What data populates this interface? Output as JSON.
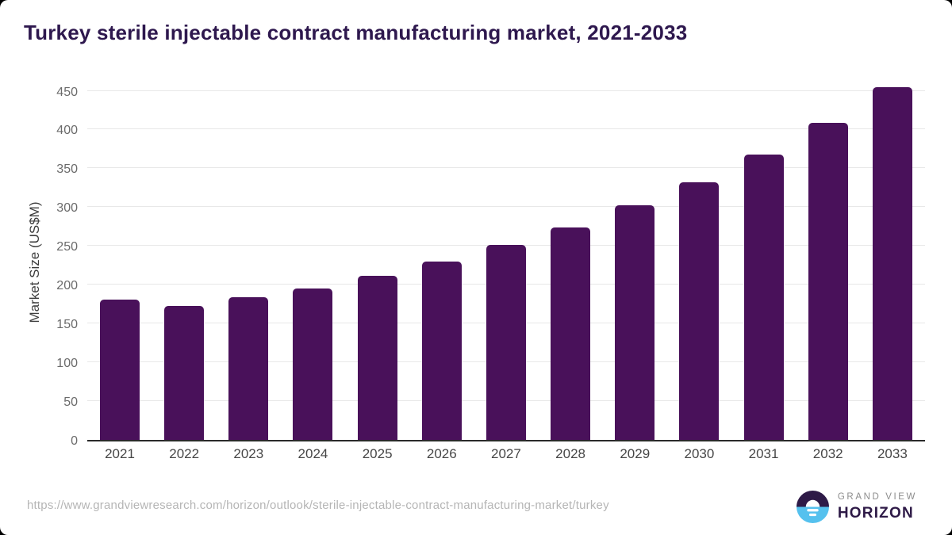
{
  "title": "Turkey sterile injectable contract manufacturing market, 2021-2033",
  "chart_data": {
    "type": "bar",
    "categories": [
      "2021",
      "2022",
      "2023",
      "2024",
      "2025",
      "2026",
      "2027",
      "2028",
      "2029",
      "2030",
      "2031",
      "2032",
      "2033"
    ],
    "values": [
      181,
      173,
      184,
      195,
      211,
      230,
      251,
      274,
      302,
      332,
      368,
      409,
      455
    ],
    "title": "Turkey sterile injectable contract manufacturing market, 2021-2033",
    "xlabel": "",
    "ylabel": "Market Size (US$M)",
    "ylim": [
      0,
      460
    ],
    "yticks": [
      0,
      50,
      100,
      150,
      200,
      250,
      300,
      350,
      400,
      450
    ],
    "grid": true,
    "legend": "none",
    "bar_color": "#49115a"
  },
  "footer": {
    "source_url": "https://www.grandviewresearch.com/horizon/outlook/sterile-injectable-contract-manufacturing-market/turkey",
    "logo": {
      "line1": "GRAND VIEW",
      "line2": "HORIZON"
    }
  },
  "colors": {
    "bar": "#49115a",
    "title": "#2e184e",
    "gridline": "#e8e8e8",
    "axis_line": "#2a2a2a",
    "tick_label": "#6b6b6b",
    "url_text": "#b5b5b5",
    "logo_dark": "#2e1a47",
    "logo_blue": "#55c1ee"
  }
}
